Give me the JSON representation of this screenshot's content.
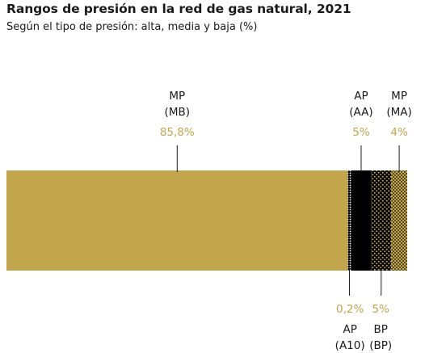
{
  "header": {
    "title": "Rangos de presión en la red de gas natural, 2021",
    "subtitle": "Según el tipo de presión: alta, media y baja (%)"
  },
  "chart_data": {
    "type": "bar",
    "orientation": "horizontal-stacked",
    "title": "Rangos de presión en la red de gas natural, 2021",
    "subtitle": "Según el tipo de presión: alta, media y baja (%)",
    "unit": "%",
    "segments": [
      {
        "name": "MP",
        "code": "(MB)",
        "value": 85.8,
        "value_label": "85,8%",
        "color": "#c2a64e",
        "pattern": "solid",
        "label_position": "top"
      },
      {
        "name": "AP",
        "code": "(A10)",
        "value": 0.2,
        "value_label": "0,2%",
        "color": "#ffffff",
        "pattern": "dots-black",
        "label_position": "bottom"
      },
      {
        "name": "AP",
        "code": "(AA)",
        "value": 5,
        "value_label": "5%",
        "color": "#000000",
        "pattern": "solid",
        "label_position": "top"
      },
      {
        "name": "BP",
        "code": "(BP)",
        "value": 5,
        "value_label": "5%",
        "color": "#000000",
        "pattern": "dots-gold",
        "label_position": "bottom"
      },
      {
        "name": "MP",
        "code": "(MA)",
        "value": 4,
        "value_label": "4%",
        "color": "#c2a64e",
        "pattern": "dots-black",
        "label_position": "top"
      }
    ],
    "colors": {
      "gold": "#c2a64e",
      "black": "#000000",
      "text": "#1a1a1a"
    }
  }
}
